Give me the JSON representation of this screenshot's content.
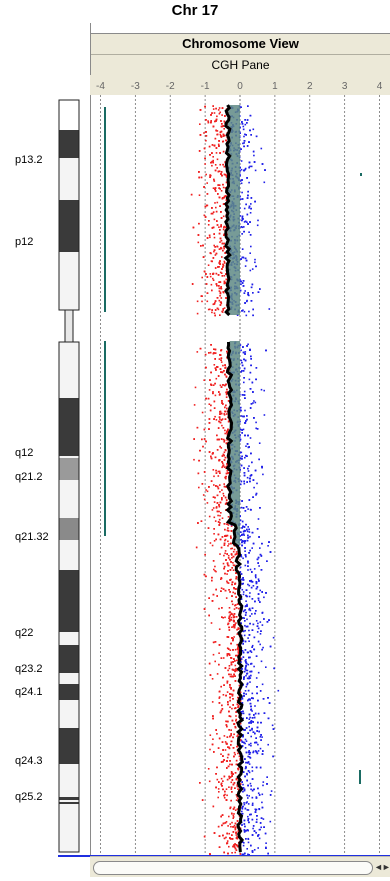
{
  "header": {
    "chromosome_title": "Chr 17",
    "view_title": "Chromosome View",
    "pane_title": "CGH Pane"
  },
  "axis": {
    "ticks": [
      "-4",
      "-3",
      "-2",
      "-1",
      "0",
      "1",
      "2",
      "3",
      "4"
    ],
    "range": [
      -4.3,
      4.3
    ]
  },
  "band_labels": [
    "p13.2",
    "p12",
    "q12",
    "q21.2",
    "q21.32",
    "q22",
    "q23.2",
    "q24.1",
    "q24.3",
    "q25.2"
  ],
  "colors": {
    "loss_points": "#f02020",
    "gain_points": "#2020e8",
    "aberration_shade": "#5f8a85",
    "segment_line": "#000000",
    "gridline": "#707070",
    "region_marker": "#1a6b63",
    "band_dark": "#3a3a3a",
    "band_light": "#f4f4f4",
    "header_bg": "#ece9d8"
  },
  "icons": {
    "scroll_arrows": "◄►"
  }
}
